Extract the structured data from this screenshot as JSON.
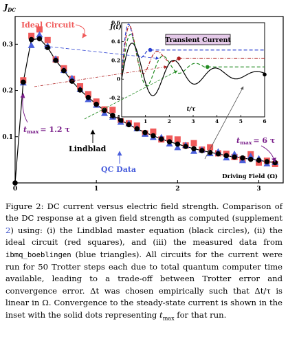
{
  "chart_data": [
    {
      "type": "scatter",
      "ylabel": "J",
      "ylabel_sub": "DC",
      "xlabel": "Driving Field (Ω)",
      "xlim": [
        0,
        3.3
      ],
      "ylim": [
        0,
        0.36
      ],
      "xticks": [
        "0",
        "1",
        "2",
        "3"
      ],
      "yticks": [
        "0.1",
        "0.2",
        "0.3"
      ],
      "series": [
        {
          "name": "Lindblad",
          "marker": "circle",
          "color": "#000000",
          "x": [
            0,
            0.1,
            0.2,
            0.3,
            0.4,
            0.5,
            0.6,
            0.7,
            0.8,
            0.9,
            1.0,
            1.1,
            1.2,
            1.3,
            1.4,
            1.5,
            1.6,
            1.7,
            1.8,
            1.9,
            2.0,
            2.1,
            2.2,
            2.3,
            2.4,
            2.5,
            2.6,
            2.7,
            2.8,
            2.9,
            3.0,
            3.1,
            3.2
          ],
          "y": [
            0,
            0.218,
            0.31,
            0.312,
            0.293,
            0.265,
            0.243,
            0.22,
            0.201,
            0.185,
            0.17,
            0.157,
            0.146,
            0.136,
            0.126,
            0.117,
            0.109,
            0.102,
            0.095,
            0.089,
            0.084,
            0.079,
            0.074,
            0.07,
            0.066,
            0.063,
            0.059,
            0.056,
            0.054,
            0.051,
            0.049,
            0.046,
            0.044
          ]
        },
        {
          "name": "Ideal Circuit",
          "marker": "square",
          "color": "#f05a5a",
          "x": [
            0.1,
            0.2,
            0.3,
            0.4,
            0.5,
            0.6,
            0.7,
            0.8,
            0.9,
            1.0,
            1.1,
            1.2,
            1.3,
            1.4,
            1.5,
            1.6,
            1.7,
            1.8,
            1.9,
            2.0,
            2.1,
            2.2,
            2.3,
            2.4,
            2.5,
            2.6,
            2.7,
            2.8,
            2.9,
            3.0,
            3.1,
            3.2
          ],
          "y": [
            0.222,
            0.318,
            0.332,
            0.309,
            0.267,
            0.248,
            0.225,
            0.209,
            0.192,
            0.176,
            0.159,
            0.158,
            0.136,
            0.129,
            0.124,
            0.107,
            0.111,
            0.094,
            0.096,
            0.094,
            0.081,
            0.086,
            0.072,
            0.077,
            0.064,
            0.063,
            0.056,
            0.051,
            0.062,
            0.044,
            0.048,
            0.041
          ]
        },
        {
          "name": "QC Data",
          "marker": "triangle",
          "color": "#4a5fdc",
          "x": [
            0.1,
            0.2,
            0.3,
            0.4,
            0.5,
            0.6,
            0.7,
            0.8,
            0.9,
            1.0,
            1.1,
            1.2,
            1.3,
            1.4,
            1.5,
            1.6,
            1.7,
            1.8,
            1.9,
            2.0,
            2.1,
            2.2,
            2.3,
            2.4,
            2.5,
            2.6,
            2.7,
            2.8,
            2.9,
            3.0,
            3.1,
            3.2
          ],
          "y": [
            0.216,
            0.297,
            0.32,
            0.296,
            0.268,
            0.243,
            0.226,
            0.202,
            0.18,
            0.168,
            0.15,
            0.142,
            0.131,
            0.128,
            0.117,
            0.105,
            0.098,
            0.098,
            0.084,
            0.076,
            0.081,
            0.068,
            0.071,
            0.063,
            0.067,
            0.054,
            0.062,
            0.048,
            0.057,
            0.052,
            0.041,
            0.044
          ]
        }
      ],
      "annotations": {
        "ideal_circuit": "Ideal Circuit",
        "qc_data": "QC Data",
        "lindblad": "Lindblad",
        "tmax_left": "t",
        "tmax_left_sub": "max",
        "tmax_left_val": "= 1.2 τ",
        "tmax_right": "t",
        "tmax_right_sub": "max",
        "tmax_right_val": "= 6 τ"
      },
      "colors": {
        "red": "#f05a5a",
        "blue": "#4a5fdc",
        "purple": "#7a1f8a",
        "green": "#228b22"
      }
    },
    {
      "type": "line",
      "title": "Transient Current",
      "ylabel": "J(t)",
      "xlabel": "t/τ",
      "xlim": [
        0,
        6
      ],
      "ylim": [
        -0.4,
        0.6
      ],
      "xticks": [
        "0",
        "1",
        "2",
        "3",
        "4",
        "5",
        "6"
      ],
      "yticks": [
        "-0.4",
        "-0.2",
        "0",
        "0.2",
        "0.4",
        "0.6"
      ],
      "steady_states": [
        {
          "color": "#2a3fd0",
          "style": "dashed",
          "y": 0.31,
          "tmax": 1.2
        },
        {
          "color": "#b02020",
          "style": "dashdot",
          "y": 0.22,
          "tmax": 2.4
        },
        {
          "color": "#228b22",
          "style": "dashed",
          "y": 0.13,
          "tmax": 3.6
        },
        {
          "color": "#000000",
          "style": "solid",
          "y": 0.05,
          "tmax": 6.0
        }
      ]
    }
  ],
  "caption": {
    "p1": "Figure 2: DC current versus electric field strength. Comparison of the DC response at a given field strength as computed (supplement ",
    "link": "2",
    "p2": ") using: (i) the Lindblad master equation (black circles), (ii) the ideal circuit (red squares), and (iii) the measured data from ",
    "mono": "ibmq_boeblingen",
    "p3": " (blue triangles). All circuits for the current were run for 50 Trotter steps each due to total quantum computer time available, leading to a trade-off between Trotter error and convergence error. Δt was chosen empirically such that Δt/τ is linear in Ω. Convergence to the steady-state current is shown in the inset with the solid dots representing ",
    "tvar": "t",
    "tsub": "max",
    "p4": " for that run."
  }
}
